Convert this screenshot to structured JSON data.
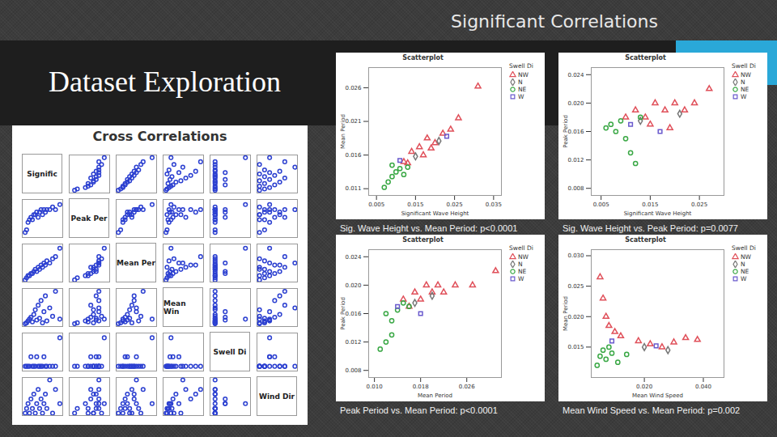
{
  "slide": {
    "heading": "Significant Correlations",
    "title": "Dataset Exploration"
  },
  "chart_data": [
    {
      "type": "scatter_matrix",
      "title": "Cross Correlations",
      "color": "#2b3fd0",
      "tick_labels": false,
      "variables": [
        {
          "name": "Signific",
          "lim": [
            0.005,
            0.033
          ],
          "values": [
            0.007,
            0.008,
            0.009,
            0.01,
            0.011,
            0.012,
            0.013,
            0.014,
            0.015,
            0.016,
            0.017,
            0.018,
            0.019,
            0.02,
            0.021,
            0.022,
            0.024,
            0.026,
            0.028,
            0.031
          ]
        },
        {
          "name": "Peak Per",
          "lim": [
            0.009,
            0.024
          ],
          "values": [
            0.011,
            0.012,
            0.015,
            0.016,
            0.017,
            0.016,
            0.018,
            0.018,
            0.019,
            0.017,
            0.019,
            0.02,
            0.018,
            0.02,
            0.019,
            0.02,
            0.02,
            0.021,
            0.02,
            0.022
          ]
        },
        {
          "name": "Mean Per",
          "lim": [
            0.01,
            0.028
          ],
          "values": [
            0.011,
            0.012,
            0.013,
            0.013,
            0.014,
            0.014,
            0.015,
            0.016,
            0.015,
            0.017,
            0.016,
            0.018,
            0.017,
            0.019,
            0.018,
            0.02,
            0.019,
            0.021,
            0.022,
            0.026
          ]
        },
        {
          "name": "Mean Win",
          "lim": [
            0.002,
            0.043
          ],
          "values": [
            0.005,
            0.006,
            0.008,
            0.01,
            0.012,
            0.007,
            0.015,
            0.02,
            0.009,
            0.025,
            0.011,
            0.03,
            0.006,
            0.018,
            0.035,
            0.008,
            0.022,
            0.013,
            0.04,
            0.01
          ]
        },
        {
          "name": "Swell Di",
          "lim": [
            0.5,
            4.5
          ],
          "values": [
            1,
            1,
            1,
            1,
            2,
            1,
            1,
            1,
            2,
            1,
            1,
            1,
            1,
            2,
            1,
            1,
            1,
            1,
            1,
            4
          ]
        },
        {
          "name": "Wind Dir",
          "lim": [
            0.5,
            8.5
          ],
          "values": [
            1,
            2,
            3,
            1,
            4,
            2,
            5,
            1,
            3,
            6,
            2,
            4,
            1,
            3,
            5,
            2,
            8,
            1,
            6,
            3
          ]
        }
      ]
    },
    {
      "type": "scatter",
      "title": "Scatterplot",
      "x_label": "Significant Wave Height",
      "y_label": "Mean Period",
      "caption": "Sig. Wave Height vs. Mean Period: p<0.0001",
      "legend_title": "Swell Di",
      "legend": "right",
      "grid": false,
      "xlim": [
        0.003,
        0.037
      ],
      "xticks": [
        0.005,
        0.015,
        0.025,
        0.035
      ],
      "ylim": [
        0.01,
        0.029
      ],
      "yticks": [
        0.011,
        0.016,
        0.021,
        0.026
      ],
      "series": [
        {
          "name": "NW",
          "color": "#e0505a",
          "marker": "triangle",
          "x": [
            0.012,
            0.014,
            0.016,
            0.018,
            0.02,
            0.022,
            0.024,
            0.026,
            0.031,
            0.017,
            0.013,
            0.019
          ],
          "values": [
            0.015,
            0.0165,
            0.0172,
            0.0185,
            0.0178,
            0.0192,
            0.0198,
            0.0215,
            0.0262,
            0.016,
            0.0148,
            0.017
          ]
        },
        {
          "name": "N",
          "color": "#777777",
          "marker": "diamond",
          "x": [
            0.015,
            0.021
          ],
          "values": [
            0.0158,
            0.0181
          ]
        },
        {
          "name": "NE",
          "color": "#3aa845",
          "marker": "circle",
          "x": [
            0.007,
            0.008,
            0.009,
            0.01,
            0.011,
            0.012,
            0.009,
            0.013
          ],
          "values": [
            0.0112,
            0.012,
            0.0128,
            0.0135,
            0.014,
            0.0131,
            0.0145,
            0.0142
          ]
        },
        {
          "name": "W",
          "color": "#6a5acd",
          "marker": "square",
          "x": [
            0.011,
            0.023
          ],
          "values": [
            0.0152,
            0.0188
          ]
        }
      ]
    },
    {
      "type": "scatter",
      "title": "Scatterplot",
      "x_label": "Significant Wave Height",
      "y_label": "Peak Period",
      "caption": "Sig. Wave Height vs. Peak Period: p=0.0077",
      "legend_title": "Swell Di",
      "legend": "right",
      "grid": false,
      "xlim": [
        0.003,
        0.03
      ],
      "xticks": [
        0.005,
        0.015,
        0.025
      ],
      "ylim": [
        0.007,
        0.025
      ],
      "yticks": [
        0.008,
        0.012,
        0.016,
        {
          "value": 0.02,
          "label": "0.020"
        },
        0.024
      ],
      "series": [
        {
          "name": "NW",
          "color": "#e0505a",
          "marker": "triangle",
          "x": [
            0.01,
            0.012,
            0.014,
            0.016,
            0.018,
            0.02,
            0.022,
            0.024,
            0.027,
            0.015,
            0.019
          ],
          "values": [
            0.018,
            0.019,
            0.018,
            0.02,
            0.019,
            0.02,
            0.019,
            0.02,
            0.022,
            0.017,
            0.0165
          ]
        },
        {
          "name": "N",
          "color": "#777777",
          "marker": "diamond",
          "x": [
            0.013,
            0.021
          ],
          "values": [
            0.0175,
            0.0185
          ]
        },
        {
          "name": "NE",
          "color": "#3aa845",
          "marker": "circle",
          "x": [
            0.006,
            0.007,
            0.008,
            0.009,
            0.01,
            0.011,
            0.012,
            0.013
          ],
          "values": [
            0.0165,
            0.017,
            0.016,
            0.0175,
            0.015,
            0.013,
            0.0115,
            0.018
          ]
        },
        {
          "name": "W",
          "color": "#6a5acd",
          "marker": "square",
          "x": [
            0.011,
            0.017
          ],
          "values": [
            0.017,
            0.016
          ]
        }
      ]
    },
    {
      "type": "scatter",
      "title": "Scatterplot",
      "x_label": "Mean Period",
      "y_label": "Peak Period",
      "caption": "Peak Period vs. Mean Period: p<0.0001",
      "legend_title": "Swell Di",
      "legend": "right",
      "grid": false,
      "xlim": [
        0.009,
        0.032
      ],
      "xticks": [
        {
          "value": 0.01,
          "label": "0.010"
        },
        0.018,
        0.026
      ],
      "ylim": [
        0.007,
        0.025
      ],
      "yticks": [
        0.008,
        0.012,
        0.016,
        {
          "value": 0.02,
          "label": "0.020"
        },
        0.024
      ],
      "series": [
        {
          "name": "NW",
          "color": "#e0505a",
          "marker": "triangle",
          "x": [
            0.015,
            0.017,
            0.018,
            0.019,
            0.02,
            0.021,
            0.022,
            0.024,
            0.027,
            0.031,
            0.016
          ],
          "values": [
            0.018,
            0.019,
            0.018,
            0.02,
            0.019,
            0.02,
            0.019,
            0.02,
            0.02,
            0.022,
            0.017
          ]
        },
        {
          "name": "N",
          "color": "#777777",
          "marker": "diamond",
          "x": [
            0.017,
            0.02
          ],
          "values": [
            0.0175,
            0.0185
          ]
        },
        {
          "name": "NE",
          "color": "#3aa845",
          "marker": "circle",
          "x": [
            0.011,
            0.012,
            0.013,
            0.014,
            0.012,
            0.013,
            0.015,
            0.016
          ],
          "values": [
            0.011,
            0.012,
            0.015,
            0.0165,
            0.016,
            0.013,
            0.0175,
            0.017
          ]
        },
        {
          "name": "W",
          "color": "#6a5acd",
          "marker": "square",
          "x": [
            0.014,
            0.018
          ],
          "values": [
            0.017,
            0.016
          ]
        }
      ]
    },
    {
      "type": "scatter",
      "title": "Scatterplot",
      "x_label": "Mean Wind Speed",
      "y_label": "Mean Period",
      "caption": "Mean Wind Speed vs. Mean Period: p=0.002",
      "legend_title": "Swell Di",
      "legend": "right",
      "grid": false,
      "xlim": [
        0.002,
        0.047
      ],
      "xticks": [
        {
          "value": 0.02,
          "label": "0.020"
        },
        {
          "value": 0.04,
          "label": "0.040"
        }
      ],
      "ylim": [
        0.01,
        0.031
      ],
      "yticks": [
        0.015,
        {
          "value": 0.02,
          "label": "0.020"
        },
        0.025,
        {
          "value": 0.03,
          "label": "0.030"
        }
      ],
      "series": [
        {
          "name": "NW",
          "color": "#e0505a",
          "marker": "triangle",
          "x": [
            0.005,
            0.006,
            0.007,
            0.008,
            0.01,
            0.012,
            0.018,
            0.022,
            0.026,
            0.03,
            0.034,
            0.038
          ],
          "values": [
            0.0265,
            0.023,
            0.02,
            0.0185,
            0.0175,
            0.0168,
            0.016,
            0.0155,
            0.015,
            0.0158,
            0.0165,
            0.0162
          ]
        },
        {
          "name": "N",
          "color": "#777777",
          "marker": "diamond",
          "x": [
            0.02,
            0.028
          ],
          "values": [
            0.015,
            0.0145
          ]
        },
        {
          "name": "NE",
          "color": "#3aa845",
          "marker": "circle",
          "x": [
            0.004,
            0.005,
            0.006,
            0.007,
            0.008,
            0.009,
            0.011,
            0.014
          ],
          "values": [
            0.012,
            0.0135,
            0.0145,
            0.013,
            0.015,
            0.014,
            0.0125,
            0.0138
          ]
        },
        {
          "name": "W",
          "color": "#6a5acd",
          "marker": "square",
          "x": [
            0.009,
            0.024
          ],
          "values": [
            0.016,
            0.0152
          ]
        }
      ]
    }
  ]
}
